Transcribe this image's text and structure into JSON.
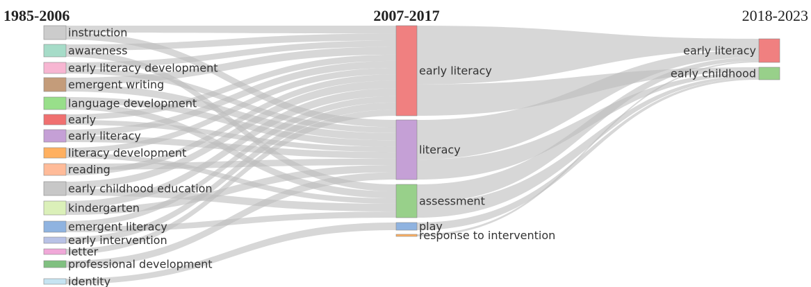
{
  "periods": [
    "1985-2006",
    "2007-2017",
    "2018-2023"
  ],
  "columns": [
    {
      "nodes": [
        {
          "label": "instruction",
          "color": "#cccccc"
        },
        {
          "label": "awareness",
          "color": "#a6dcc8"
        },
        {
          "label": "early literacy development",
          "color": "#f7b6d2"
        },
        {
          "label": "emergent writing",
          "color": "#c49c7a"
        },
        {
          "label": "language development",
          "color": "#98df8a"
        },
        {
          "label": "early",
          "color": "#f07070"
        },
        {
          "label": "early literacy",
          "color": "#c5a0d6"
        },
        {
          "label": "literacy development",
          "color": "#ffb060"
        },
        {
          "label": "reading",
          "color": "#ffbb99"
        },
        {
          "label": "early childhood education",
          "color": "#c7c7c7"
        },
        {
          "label": "kindergarten",
          "color": "#dbf0b9"
        },
        {
          "label": "emergent literacy",
          "color": "#8fb3e0"
        },
        {
          "label": "early intervention",
          "color": "#b8c2e6"
        },
        {
          "label": "letter",
          "color": "#f0a8d8"
        },
        {
          "label": "professional development",
          "color": "#80c080"
        },
        {
          "label": "identity",
          "color": "#c6e4f2"
        }
      ]
    },
    {
      "nodes": [
        {
          "label": "early literacy",
          "color": "#f08080"
        },
        {
          "label": "literacy",
          "color": "#c5a0d6"
        },
        {
          "label": "assessment",
          "color": "#98d08a"
        },
        {
          "label": "play",
          "color": "#8fb3e0"
        },
        {
          "label": "response to intervention",
          "color": "#ffb060"
        }
      ]
    },
    {
      "nodes": [
        {
          "label": "early literacy",
          "color": "#f08080"
        },
        {
          "label": "early childhood",
          "color": "#98d08a"
        }
      ]
    }
  ]
}
